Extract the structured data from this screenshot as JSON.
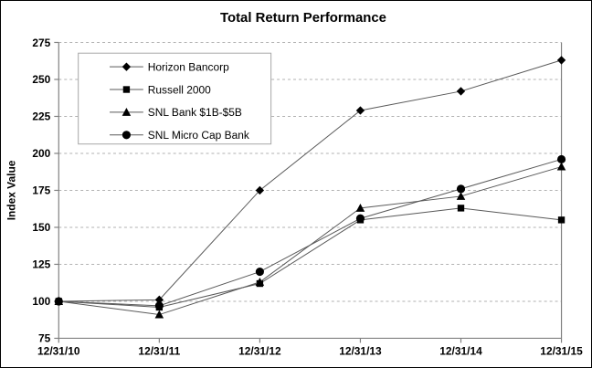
{
  "chart_data": {
    "type": "line",
    "title": "Total Return Performance",
    "xlabel": "",
    "ylabel": "Index Value",
    "categories": [
      "12/31/10",
      "12/31/11",
      "12/31/12",
      "12/31/13",
      "12/31/14",
      "12/31/15"
    ],
    "series": [
      {
        "name": "Horizon Bancorp",
        "marker": "diamond",
        "values": [
          100,
          101,
          175,
          229,
          242,
          263
        ]
      },
      {
        "name": "Russell 2000",
        "marker": "square",
        "values": [
          100,
          96,
          112,
          155,
          163,
          155
        ]
      },
      {
        "name": "SNL Bank $1B-$5B",
        "marker": "triangle",
        "values": [
          100,
          91,
          113,
          163,
          171,
          191
        ]
      },
      {
        "name": "SNL Micro Cap Bank",
        "marker": "circle",
        "values": [
          100,
          97,
          120,
          156,
          176,
          196
        ]
      }
    ],
    "ylim": [
      75,
      275
    ],
    "ytick_step": 25,
    "yticks": [
      75,
      100,
      125,
      150,
      175,
      200,
      225,
      250,
      275
    ],
    "grid": "horizontal-dashed",
    "legend_position": "upper-left-inside",
    "colors": {
      "background": "#ffffff",
      "axis": "#808080",
      "gridline": "#b2b2b2",
      "series_line": "#595959",
      "marker_fill": "#000000",
      "legend_border": "#a6a6a6",
      "text": "#000000"
    }
  }
}
